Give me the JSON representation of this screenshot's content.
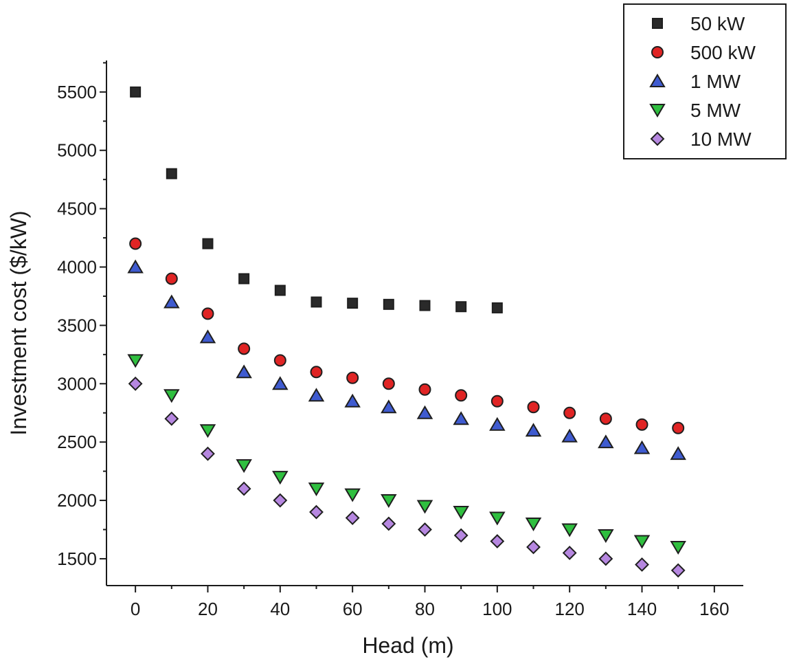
{
  "chart_data": {
    "type": "scatter",
    "title": "",
    "xlabel": "Head (m)",
    "ylabel": "Investment cost ($/kW)",
    "xlim": [
      -8,
      168
    ],
    "ylim": [
      1270,
      5770
    ],
    "x_ticks": [
      0,
      20,
      40,
      60,
      80,
      100,
      120,
      140,
      160
    ],
    "y_ticks": [
      1500,
      2000,
      2500,
      3000,
      3500,
      4000,
      4500,
      5000,
      5500
    ],
    "grid": false,
    "legend_position": "top-right",
    "series": [
      {
        "name": "50 kW",
        "marker": "square",
        "color": "#3a3a3a",
        "x": [
          0,
          10,
          20,
          30,
          40,
          50,
          60,
          70,
          80,
          90,
          100
        ],
        "y": [
          5500,
          4800,
          4200,
          3900,
          3800,
          3700,
          3690,
          3680,
          3670,
          3660,
          3650
        ]
      },
      {
        "name": "500 kW",
        "marker": "circle",
        "color": "#e02424",
        "x": [
          0,
          10,
          20,
          30,
          40,
          50,
          60,
          70,
          80,
          90,
          100,
          110,
          120,
          130,
          140,
          150
        ],
        "y": [
          4200,
          3900,
          3600,
          3300,
          3200,
          3100,
          3050,
          3000,
          2950,
          2900,
          2850,
          2800,
          2750,
          2700,
          2650,
          2620
        ]
      },
      {
        "name": "1 MW",
        "marker": "triangle-up",
        "color": "#3f5bd0",
        "x": [
          0,
          10,
          20,
          30,
          40,
          50,
          60,
          70,
          80,
          90,
          100,
          110,
          120,
          130,
          140,
          150
        ],
        "y": [
          4000,
          3700,
          3400,
          3100,
          3000,
          2900,
          2850,
          2800,
          2750,
          2700,
          2650,
          2600,
          2550,
          2500,
          2450,
          2400
        ]
      },
      {
        "name": "5 MW",
        "marker": "triangle-down",
        "color": "#2fbf3f",
        "x": [
          0,
          10,
          20,
          30,
          40,
          50,
          60,
          70,
          80,
          90,
          100,
          110,
          120,
          130,
          140,
          150
        ],
        "y": [
          3200,
          2900,
          2600,
          2300,
          2200,
          2100,
          2050,
          2000,
          1950,
          1900,
          1850,
          1800,
          1750,
          1700,
          1650,
          1600
        ]
      },
      {
        "name": "10 MW",
        "marker": "diamond",
        "color": "#b687e0",
        "x": [
          0,
          10,
          20,
          30,
          40,
          50,
          60,
          70,
          80,
          90,
          100,
          110,
          120,
          130,
          140,
          150
        ],
        "y": [
          3000,
          2700,
          2400,
          2100,
          2000,
          1900,
          1850,
          1800,
          1750,
          1700,
          1650,
          1600,
          1550,
          1500,
          1450,
          1400
        ]
      }
    ]
  }
}
